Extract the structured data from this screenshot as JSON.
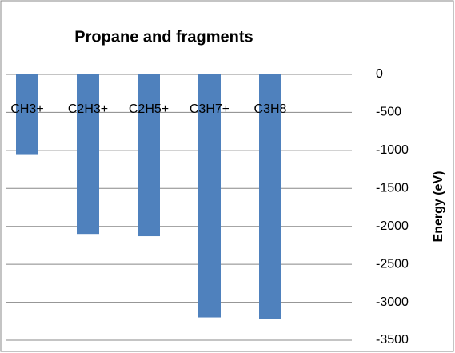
{
  "chart_data": {
    "type": "bar",
    "title": "Propane and fragments",
    "y_label": "Energy (eV)",
    "categories": [
      "CH3+",
      "C2H3+",
      "C2H5+",
      "C3H7+",
      "C3H8"
    ],
    "values": [
      -1060,
      -2100,
      -2130,
      -3200,
      -3220
    ],
    "color": "#4f81bd",
    "ylim": [
      -3500,
      0
    ],
    "yticks": [
      0,
      -500,
      -1000,
      -1500,
      -2000,
      -2500,
      -3000,
      -3500
    ],
    "grid": true
  }
}
